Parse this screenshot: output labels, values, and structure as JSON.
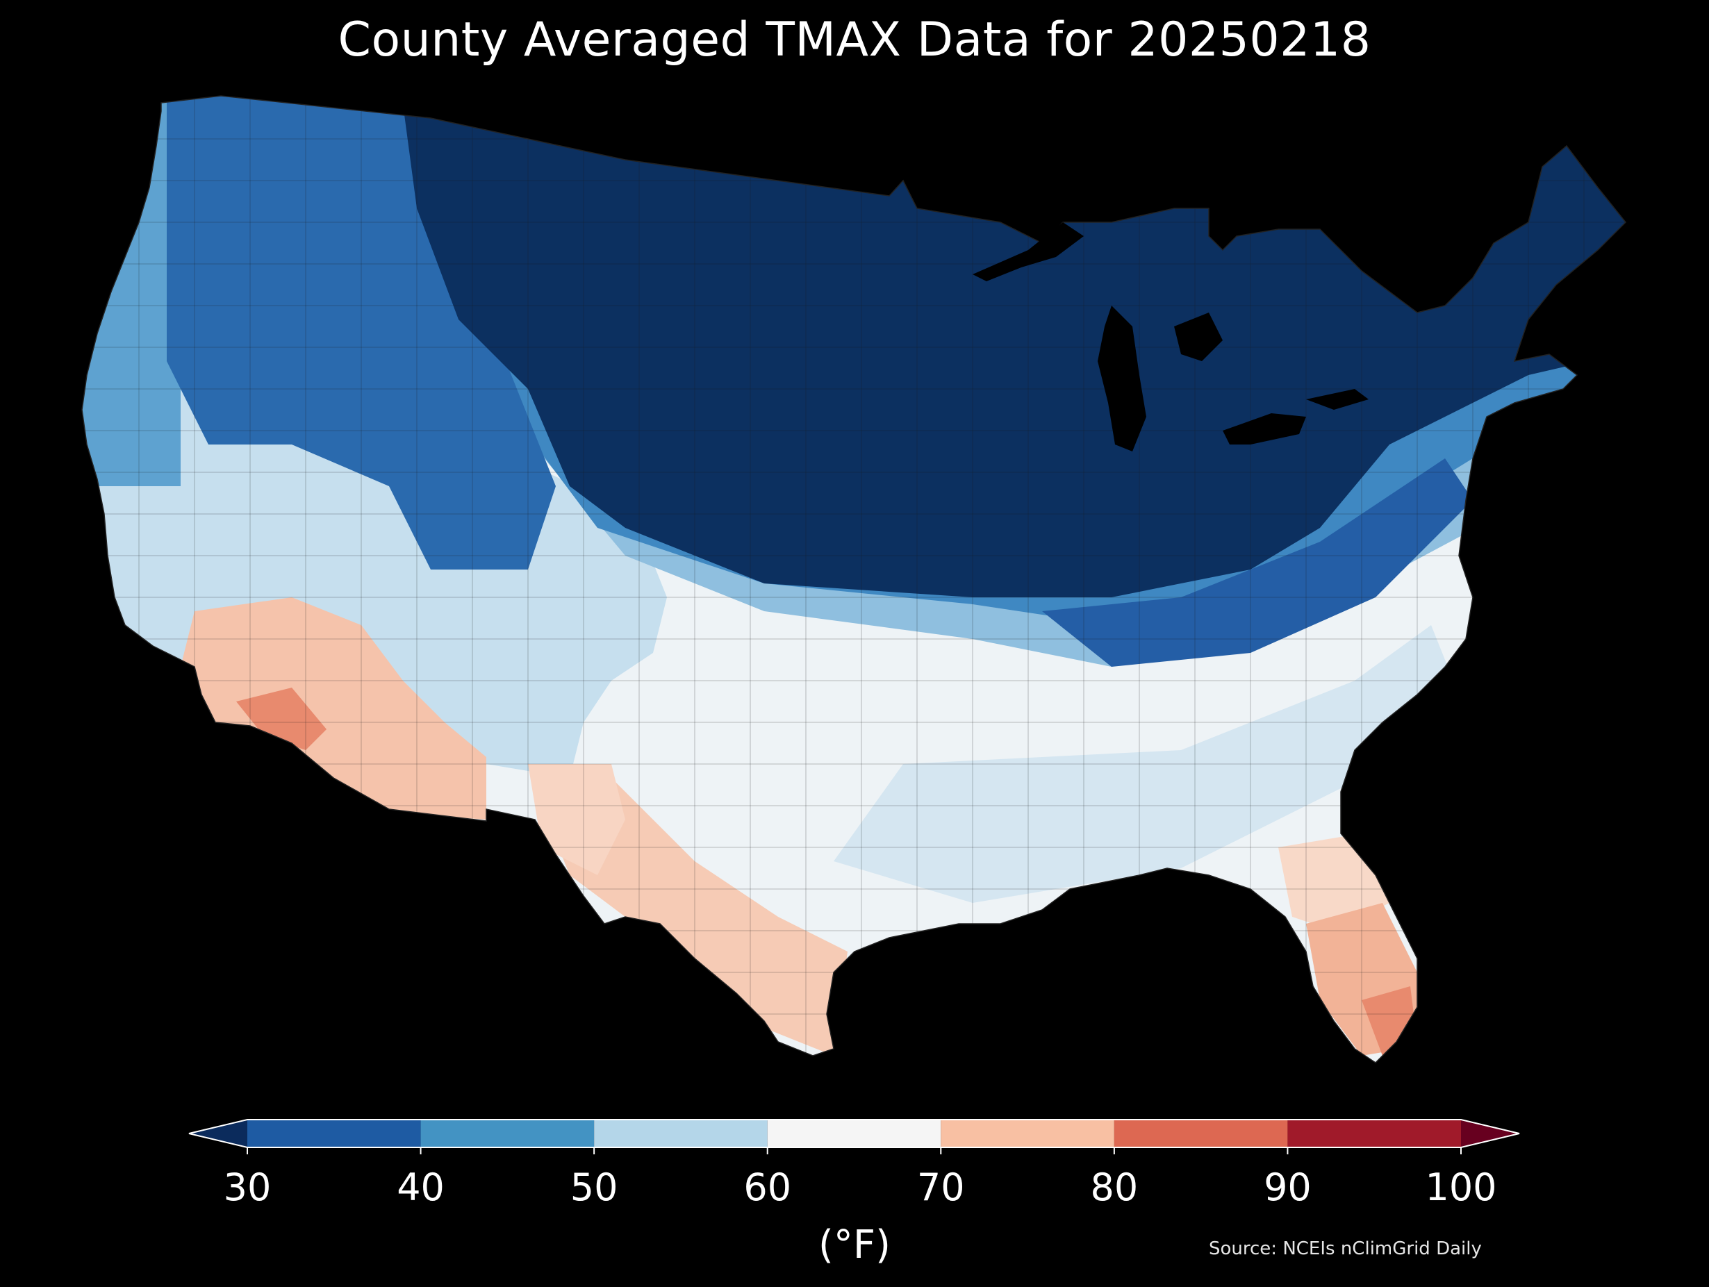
{
  "title": "County Averaged TMAX Data for 20250218",
  "colorbar": {
    "ticks": [
      "30",
      "40",
      "50",
      "60",
      "70",
      "80",
      "90",
      "100"
    ],
    "unit_label": "(°F)",
    "under_color": "#0b2b5c",
    "over_color": "#67001f",
    "bins": [
      {
        "from": 30,
        "to": 40,
        "color": "#1e5ba3"
      },
      {
        "from": 40,
        "to": 50,
        "color": "#4393c3"
      },
      {
        "from": 50,
        "to": 60,
        "color": "#b4d6e9"
      },
      {
        "from": 60,
        "to": 70,
        "color": "#f5f5f5"
      },
      {
        "from": 70,
        "to": 80,
        "color": "#f8c0a3"
      },
      {
        "from": 80,
        "to": 90,
        "color": "#dd6852"
      },
      {
        "from": 90,
        "to": 100,
        "color": "#a01a2a"
      }
    ]
  },
  "source": "Source: NCEIs nClimGrid Daily",
  "map_regions": [
    {
      "name": "north-plains-midwest-northeast",
      "range": "<30",
      "color": "#0c3060"
    },
    {
      "name": "northwest-interior",
      "range": "30-40",
      "color": "#2a6aae"
    },
    {
      "name": "pacific-coast-north",
      "range": "40-50",
      "color": "#5ea2d0"
    },
    {
      "name": "central-transition",
      "range": "40-50",
      "color": "#3f88c2"
    },
    {
      "name": "great-basin-southwest-interior",
      "range": "50-60",
      "color": "#c6dfee"
    },
    {
      "name": "southern-plains-southeast",
      "range": "60-70",
      "color": "#eef3f6"
    },
    {
      "name": "southwest-desert",
      "range": "70-80",
      "color": "#f5c3ab"
    },
    {
      "name": "lower-colorado-river",
      "range": "80-90",
      "color": "#e88a6e"
    },
    {
      "name": "south-texas",
      "range": "70-80",
      "color": "#f6cbb5"
    },
    {
      "name": "south-florida",
      "range": "70-80",
      "color": "#f2b397"
    }
  ]
}
